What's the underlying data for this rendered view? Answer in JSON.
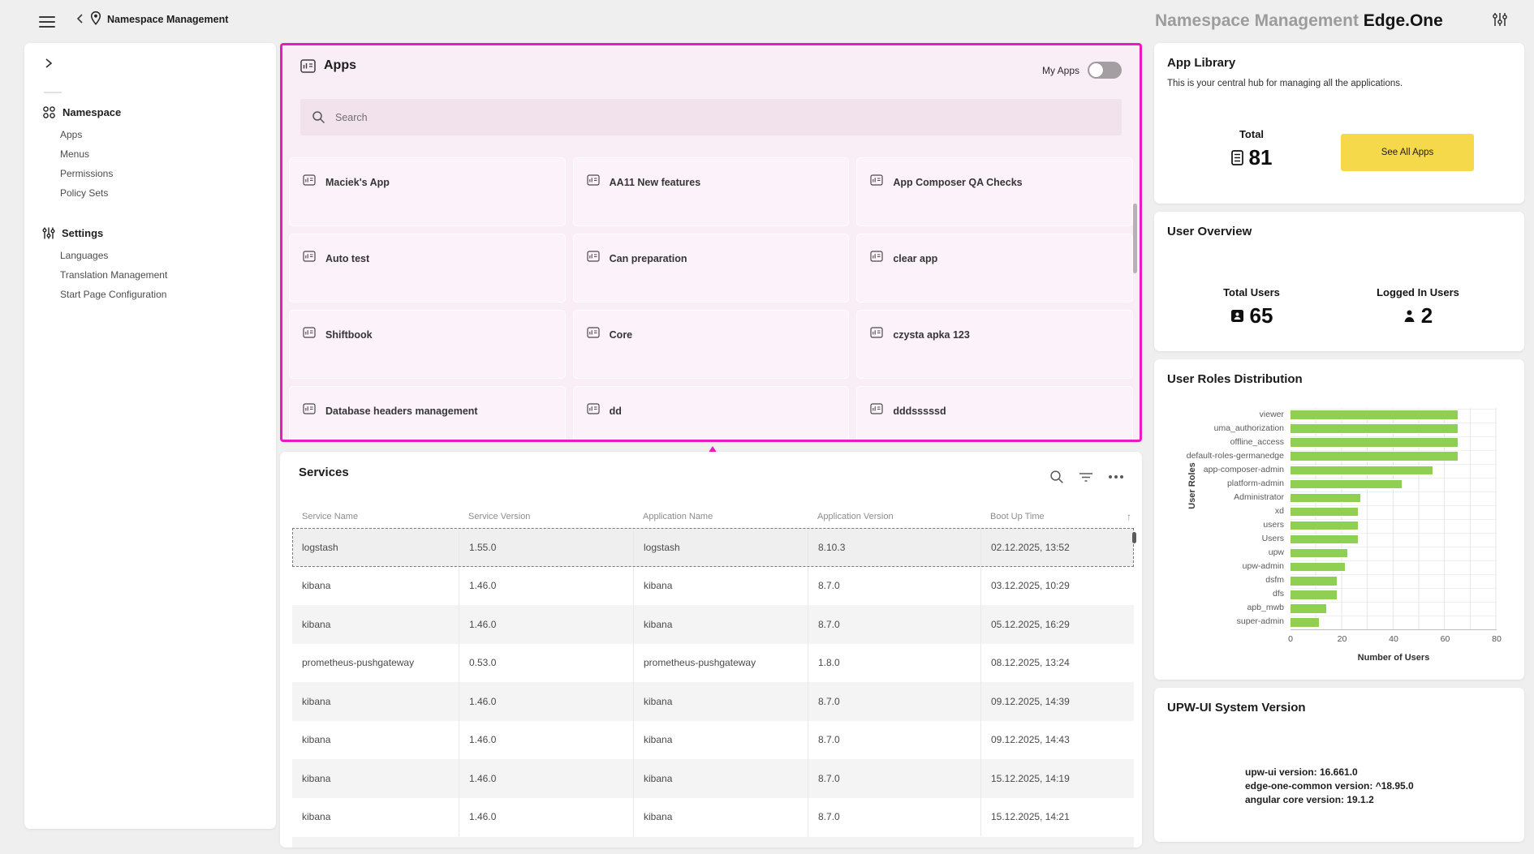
{
  "top_bar": {
    "title": "Namespace Management"
  },
  "header": {
    "product_gray": "Namespace Management",
    "product_bold": "Edge.One"
  },
  "sidebar": {
    "sections": [
      {
        "label": "Namespace",
        "icon": "namespace-icon",
        "items": [
          "Apps",
          "Menus",
          "Permissions",
          "Policy Sets"
        ]
      },
      {
        "label": "Settings",
        "icon": "settings-icon",
        "items": [
          "Languages",
          "Translation Management",
          "Start Page Configuration"
        ]
      }
    ]
  },
  "apps_panel": {
    "title": "Apps",
    "my_apps_label": "My Apps",
    "my_apps_toggle": "off",
    "search_placeholder": "Search",
    "apps": [
      "Maciek's App",
      "AA11 New features",
      "App Composer QA Checks",
      "Auto test",
      "Can preparation",
      "clear app",
      "Shiftbook",
      "Core",
      "czysta apka 123",
      "Database headers management",
      "dd",
      "dddsssssd"
    ]
  },
  "services": {
    "title": "Services",
    "columns": [
      "Service Name",
      "Service Version",
      "Application Name",
      "Application Version",
      "Boot Up Time"
    ],
    "sort_icon": "↑",
    "selected_row_index": 0,
    "rows": [
      [
        "logstash",
        "1.55.0",
        "logstash",
        "8.10.3",
        "02.12.2025, 13:52"
      ],
      [
        "kibana",
        "1.46.0",
        "kibana",
        "8.7.0",
        "03.12.2025, 10:29"
      ],
      [
        "kibana",
        "1.46.0",
        "kibana",
        "8.7.0",
        "05.12.2025, 16:29"
      ],
      [
        "prometheus-pushgateway",
        "0.53.0",
        "prometheus-pushgateway",
        "1.8.0",
        "08.12.2025, 13:24"
      ],
      [
        "kibana",
        "1.46.0",
        "kibana",
        "8.7.0",
        "09.12.2025, 14:39"
      ],
      [
        "kibana",
        "1.46.0",
        "kibana",
        "8.7.0",
        "09.12.2025, 14:43"
      ],
      [
        "kibana",
        "1.46.0",
        "kibana",
        "8.7.0",
        "15.12.2025, 14:19"
      ],
      [
        "kibana",
        "1.46.0",
        "kibana",
        "8.7.0",
        "15.12.2025, 14:21"
      ]
    ]
  },
  "app_library": {
    "title": "App Library",
    "subtitle": "This is your central hub for managing all the applications.",
    "total_label": "Total",
    "total_value": "81",
    "button_label": "See All Apps"
  },
  "user_overview": {
    "title": "User Overview",
    "total_users_label": "Total Users",
    "total_users_value": "65",
    "logged_in_label": "Logged In Users",
    "logged_in_value": "2"
  },
  "chart_data": {
    "type": "bar",
    "orientation": "horizontal",
    "title": "User Roles Distribution",
    "categories": [
      "viewer",
      "uma_authorization",
      "offline_access",
      "default-roles-germanedge",
      "app-composer-admin",
      "platform-admin",
      "Administrator",
      "xd",
      "users",
      "Users",
      "upw",
      "upw-admin",
      "dsfm",
      "dfs",
      "apb_mwb",
      "super-admin"
    ],
    "values": [
      65,
      65,
      65,
      65,
      55,
      43,
      27,
      26,
      26,
      26,
      22,
      21,
      18,
      18,
      14,
      11
    ],
    "xlabel": "Number of Users",
    "ylabel": "User Roles",
    "xlim": [
      0,
      80
    ],
    "xticks": [
      0,
      20,
      40,
      60,
      80
    ],
    "grid": true,
    "legend": "none",
    "bar_color": "#8fd052"
  },
  "system_version": {
    "title": "UPW-UI System Version",
    "lines": [
      "upw-ui version: 16.661.0",
      "edge-one-common version: ^18.95.0",
      "angular core version: 19.1.2"
    ]
  },
  "colors": {
    "annotation_magenta": "#ea1ac0",
    "arrow_magenta": "#f214c4",
    "bar_green": "#8fd052",
    "button_yellow": "#f6d84b",
    "page_bg": "#efeff0"
  }
}
